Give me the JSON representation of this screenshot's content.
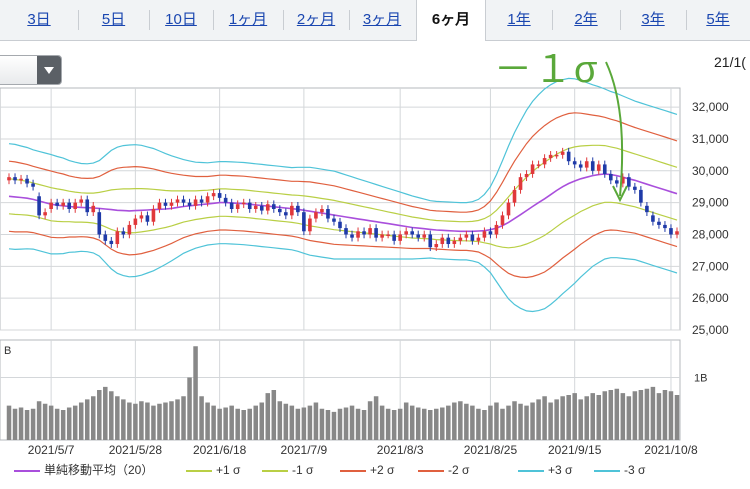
{
  "tabs": [
    {
      "label": "3日"
    },
    {
      "label": "5日"
    },
    {
      "label": "10日"
    },
    {
      "label": "1ヶ月"
    },
    {
      "label": "2ヶ月"
    },
    {
      "label": "3ヶ月"
    },
    {
      "label": "6ヶ月",
      "active": true
    },
    {
      "label": "1年"
    },
    {
      "label": "2年"
    },
    {
      "label": "3年"
    },
    {
      "label": "5年"
    }
  ],
  "date_label": "21/1(",
  "annotation": "－１σ",
  "colors": {
    "up": "#e0383b",
    "down": "#1f3aa8",
    "sma": "#a94fdc",
    "p1": "#b9cf45",
    "m1": "#b9cf45",
    "p2": "#e0603f",
    "m2": "#e0603f",
    "p3": "#4fc3d8",
    "m3": "#4fc3d8",
    "volume": "#888888",
    "annotation": "#5aa83a"
  },
  "legend": [
    {
      "label": "単純移動平均（20）",
      "color": "#a94fdc"
    },
    {
      "label": "+1 σ",
      "color": "#b9cf45"
    },
    {
      "label": "-1 σ",
      "color": "#b9cf45"
    },
    {
      "label": "+2 σ",
      "color": "#e0603f"
    },
    {
      "label": "-2 σ",
      "color": "#e0603f"
    },
    {
      "label": "+3 σ",
      "color": "#4fc3d8"
    },
    {
      "label": "-3 σ",
      "color": "#4fc3d8"
    }
  ],
  "chart_data": {
    "type": "candlestick",
    "ylim": [
      25000,
      32600
    ],
    "yticks": [
      "32,000",
      "31,000",
      "30,000",
      "29,000",
      "28,000",
      "27,000",
      "26,000",
      "25,000"
    ],
    "ytick_values": [
      32000,
      31000,
      30000,
      29000,
      28000,
      27000,
      26000,
      25000
    ],
    "xticks": [
      "2021/5/7",
      "2021/5/28",
      "2021/6/18",
      "2021/7/9",
      "2021/8/3",
      "2021/8/25",
      "2021/9/15",
      "2021/10/8"
    ],
    "xtick_index": [
      7,
      21,
      35,
      49,
      65,
      80,
      94,
      110
    ],
    "n_days": 112,
    "volume_label": "B",
    "volume_tick": "1B",
    "volume_ylim": [
      0,
      1.6
    ],
    "close": [
      29800,
      29700,
      29750,
      29600,
      29500,
      28600,
      28700,
      29000,
      28900,
      29000,
      28800,
      29000,
      29100,
      28700,
      28900,
      28000,
      27800,
      27700,
      28100,
      28000,
      28300,
      28500,
      28600,
      28400,
      28800,
      29000,
      28900,
      29000,
      29100,
      29000,
      28900,
      29100,
      29000,
      29200,
      29300,
      29150,
      29000,
      28800,
      28950,
      29000,
      28800,
      28900,
      28750,
      28950,
      28800,
      28700,
      28600,
      28900,
      28700,
      28100,
      28500,
      28700,
      28800,
      28500,
      28400,
      28200,
      28000,
      27900,
      28100,
      28000,
      28200,
      27900,
      28000,
      28000,
      27800,
      28000,
      28100,
      28000,
      27900,
      28000,
      27600,
      27700,
      27900,
      27700,
      27800,
      27900,
      28000,
      27800,
      27900,
      28100,
      28000,
      28300,
      28600,
      29000,
      29400,
      29800,
      29900,
      30200,
      30200,
      30400,
      30500,
      30500,
      30600,
      30300,
      30200,
      30100,
      30300,
      30000,
      30200,
      29900,
      29700,
      29600,
      29800,
      29500,
      29400,
      29000,
      28700,
      28400,
      28300,
      28200,
      28000,
      28100
    ],
    "open": [
      29700,
      29800,
      29700,
      29750,
      29600,
      29200,
      28600,
      28800,
      29000,
      28900,
      29000,
      28800,
      29000,
      29100,
      28700,
      28700,
      28000,
      27800,
      27700,
      28100,
      28000,
      28300,
      28500,
      28600,
      28400,
      28800,
      29000,
      28900,
      29000,
      29100,
      29000,
      28900,
      29100,
      29000,
      29200,
      29300,
      29150,
      29000,
      28800,
      28950,
      29000,
      28800,
      28900,
      28750,
      28950,
      28800,
      28700,
      28600,
      28900,
      28700,
      28100,
      28500,
      28700,
      28800,
      28500,
      28400,
      28200,
      28000,
      27900,
      28100,
      28000,
      28200,
      27900,
      28000,
      28000,
      27800,
      28000,
      28100,
      28000,
      27900,
      28000,
      27600,
      27700,
      27900,
      27700,
      27800,
      27900,
      28000,
      27800,
      27900,
      28100,
      28000,
      28300,
      28600,
      29000,
      29400,
      29800,
      29900,
      30200,
      30200,
      30400,
      30500,
      30500,
      30600,
      30300,
      30200,
      30100,
      30300,
      30000,
      30200,
      29900,
      29700,
      29600,
      29800,
      29500,
      29400,
      28900,
      28600,
      28400,
      28300,
      28200,
      28000
    ],
    "sma": [
      29200,
      29180,
      29160,
      29140,
      29100,
      29050,
      29000,
      28950,
      28920,
      28900,
      28880,
      28860,
      28850,
      28840,
      28830,
      28820,
      28800,
      28780,
      28760,
      28750,
      28740,
      28750,
      28760,
      28770,
      28780,
      28790,
      28800,
      28820,
      28850,
      28880,
      28900,
      28920,
      28940,
      28960,
      28980,
      29000,
      29000,
      28990,
      28980,
      28970,
      28950,
      28930,
      28910,
      28890,
      28870,
      28850,
      28830,
      28810,
      28790,
      28760,
      28730,
      28700,
      28670,
      28640,
      28610,
      28580,
      28550,
      28520,
      28490,
      28460,
      28430,
      28400,
      28370,
      28340,
      28310,
      28280,
      28250,
      28220,
      28200,
      28180,
      28160,
      28140,
      28130,
      28120,
      28110,
      28100,
      28100,
      28100,
      28110,
      28120,
      28150,
      28200,
      28280,
      28380,
      28500,
      28620,
      28750,
      28880,
      29000,
      29120,
      29250,
      29380,
      29500,
      29600,
      29680,
      29750,
      29800,
      29850,
      29880,
      29900,
      29880,
      29850,
      29800,
      29750,
      29700,
      29640,
      29580,
      29520,
      29460,
      29400,
      29340,
      29280
    ],
    "sd": [
      550,
      550,
      540,
      530,
      520,
      520,
      520,
      520,
      510,
      500,
      480,
      470,
      460,
      460,
      470,
      500,
      560,
      620,
      660,
      680,
      690,
      690,
      680,
      660,
      640,
      610,
      580,
      550,
      520,
      490,
      470,
      450,
      440,
      430,
      430,
      430,
      430,
      430,
      430,
      430,
      430,
      430,
      430,
      430,
      430,
      430,
      430,
      430,
      440,
      450,
      460,
      460,
      460,
      460,
      460,
      450,
      440,
      430,
      420,
      410,
      400,
      390,
      380,
      370,
      360,
      350,
      340,
      330,
      320,
      310,
      300,
      300,
      300,
      300,
      300,
      300,
      300,
      310,
      330,
      380,
      450,
      560,
      680,
      800,
      900,
      980,
      1050,
      1100,
      1130,
      1150,
      1150,
      1140,
      1120,
      1100,
      1070,
      1030,
      990,
      950,
      920,
      890,
      870,
      860,
      850,
      840,
      830,
      830,
      830,
      830,
      830,
      830,
      830,
      830
    ],
    "volume": [
      0.55,
      0.5,
      0.52,
      0.48,
      0.5,
      0.62,
      0.58,
      0.55,
      0.5,
      0.48,
      0.52,
      0.55,
      0.6,
      0.65,
      0.7,
      0.8,
      0.85,
      0.78,
      0.7,
      0.65,
      0.6,
      0.58,
      0.62,
      0.6,
      0.55,
      0.58,
      0.6,
      0.62,
      0.65,
      0.7,
      1.0,
      1.5,
      0.7,
      0.6,
      0.55,
      0.5,
      0.52,
      0.55,
      0.5,
      0.48,
      0.5,
      0.55,
      0.6,
      0.75,
      0.8,
      0.62,
      0.58,
      0.55,
      0.5,
      0.52,
      0.55,
      0.6,
      0.5,
      0.48,
      0.45,
      0.5,
      0.52,
      0.55,
      0.5,
      0.48,
      0.62,
      0.7,
      0.55,
      0.5,
      0.48,
      0.5,
      0.6,
      0.55,
      0.52,
      0.5,
      0.48,
      0.5,
      0.52,
      0.55,
      0.6,
      0.62,
      0.58,
      0.55,
      0.5,
      0.48,
      0.55,
      0.6,
      0.5,
      0.55,
      0.62,
      0.58,
      0.55,
      0.6,
      0.65,
      0.7,
      0.6,
      0.65,
      0.7,
      0.72,
      0.75,
      0.65,
      0.7,
      0.75,
      0.72,
      0.78,
      0.8,
      0.82,
      0.75,
      0.7,
      0.78,
      0.8,
      0.82,
      0.85,
      0.75,
      0.8,
      0.78,
      0.72
    ]
  }
}
